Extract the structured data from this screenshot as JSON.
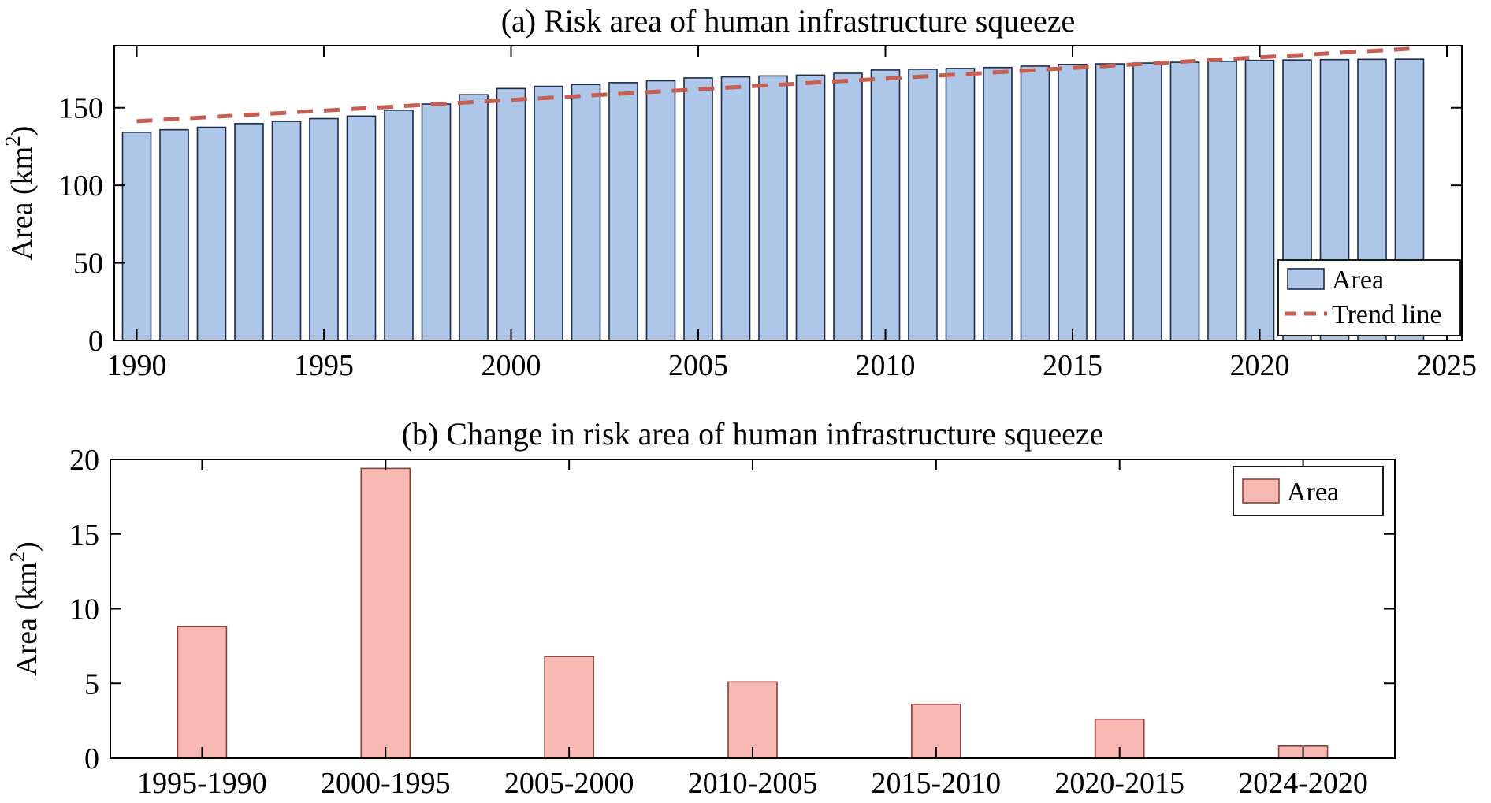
{
  "figure": {
    "background": "#ffffff",
    "axis_color": "#000000",
    "text_color": "#000000"
  },
  "chart_data": [
    {
      "type": "bar",
      "title": "(a) Risk area of human infrastructure squeeze",
      "xlabel": "",
      "ylabel": "Area (km²)",
      "x": [
        1990,
        1991,
        1992,
        1993,
        1994,
        1995,
        1996,
        1997,
        1998,
        1999,
        2000,
        2001,
        2002,
        2003,
        2004,
        2005,
        2006,
        2007,
        2008,
        2009,
        2010,
        2011,
        2012,
        2013,
        2014,
        2015,
        2016,
        2017,
        2018,
        2019,
        2020,
        2021,
        2022,
        2023,
        2024
      ],
      "values": [
        134.2,
        135.8,
        137.4,
        139.8,
        141.2,
        143.0,
        144.6,
        148.4,
        152.4,
        158.4,
        162.4,
        163.8,
        165.0,
        166.2,
        167.4,
        169.2,
        169.9,
        170.5,
        171.0,
        172.2,
        174.3,
        174.8,
        175.3,
        175.9,
        176.8,
        177.9,
        178.3,
        178.8,
        179.3,
        179.9,
        180.5,
        180.8,
        181.0,
        181.2,
        181.3
      ],
      "xlim": [
        1989.4,
        2025.4
      ],
      "ylim": [
        0,
        190
      ],
      "xticks": [
        1990,
        1995,
        2000,
        2005,
        2010,
        2015,
        2020,
        2025
      ],
      "yticks": [
        0,
        50,
        100,
        150
      ],
      "grid": false,
      "bar_fill": "#aec6e8",
      "bar_edge": "#1b2a4a",
      "trend": {
        "style": "dashed",
        "color": "#c65f51",
        "x": [
          1990,
          2024
        ],
        "y": [
          141.3,
          188.0
        ]
      },
      "legend": {
        "position": "lower right",
        "items": [
          {
            "label": "Area",
            "swatch": "bar"
          },
          {
            "label": "Trend line",
            "swatch": "dashed-line"
          }
        ]
      }
    },
    {
      "type": "bar",
      "title": "(b) Change in risk area of human infrastructure squeeze",
      "xlabel": "",
      "ylabel": "Area (km²)",
      "categories": [
        "1995-1990",
        "2000-1995",
        "2005-2000",
        "2010-2005",
        "2015-2010",
        "2020-2015",
        "2024-2020"
      ],
      "values": [
        8.8,
        19.4,
        6.8,
        5.1,
        3.6,
        2.6,
        0.8
      ],
      "ylim": [
        0,
        20
      ],
      "yticks": [
        0,
        5,
        10,
        15,
        20
      ],
      "grid": false,
      "bar_fill": "#f8b9b5",
      "bar_edge": "#8d3f36",
      "legend": {
        "position": "upper right",
        "items": [
          {
            "label": "Area",
            "swatch": "bar"
          }
        ]
      }
    }
  ]
}
